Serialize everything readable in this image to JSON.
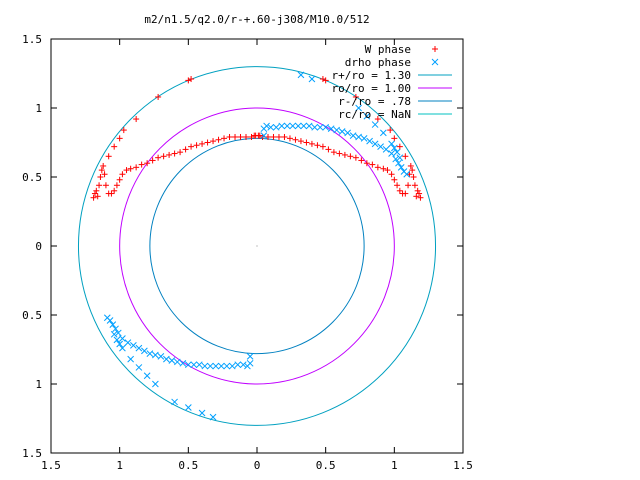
{
  "chart_data": {
    "type": "scatter",
    "title": "m2/n1.5/q2.0/r-+.60-j308/M10.0/512",
    "xlabel": "",
    "ylabel": "",
    "xlim": [
      -1.5,
      1.5
    ],
    "ylim": [
      -1.5,
      1.5
    ],
    "x_ticks": [
      -1.5,
      -1,
      -0.5,
      0,
      0.5,
      1,
      1.5
    ],
    "x_tick_labels": [
      "1.5",
      "1",
      "0.5",
      "0",
      "0.5",
      "1",
      "1.5"
    ],
    "y_ticks": [
      1.5,
      1,
      0.5,
      0,
      -0.5,
      -1,
      -1.5
    ],
    "y_tick_labels": [
      "1.5",
      "1",
      "0.5",
      "0",
      "0.5",
      "1",
      "1.5"
    ],
    "grid": false,
    "legend_position": "top-right",
    "series": [
      {
        "name": "W phase",
        "marker": "plus",
        "color": "#ff0000",
        "points": [
          [
            -1.19,
            0.35
          ],
          [
            -1.18,
            0.38
          ],
          [
            -1.17,
            0.4
          ],
          [
            -1.16,
            0.36
          ],
          [
            -1.15,
            0.44
          ],
          [
            -1.14,
            0.5
          ],
          [
            -1.13,
            0.55
          ],
          [
            -1.12,
            0.58
          ],
          [
            -1.11,
            0.52
          ],
          [
            -1.1,
            0.44
          ],
          [
            -1.08,
            0.38
          ],
          [
            -1.06,
            0.38
          ],
          [
            -1.04,
            0.4
          ],
          [
            -1.02,
            0.44
          ],
          [
            -1.0,
            0.48
          ],
          [
            -0.98,
            0.52
          ],
          [
            -0.95,
            0.55
          ],
          [
            -0.92,
            0.56
          ],
          [
            -0.88,
            0.57
          ],
          [
            -0.84,
            0.59
          ],
          [
            -0.8,
            0.6
          ],
          [
            -0.76,
            0.62
          ],
          [
            -0.72,
            0.64
          ],
          [
            -0.68,
            0.65
          ],
          [
            -0.64,
            0.66
          ],
          [
            -0.6,
            0.67
          ],
          [
            -0.56,
            0.68
          ],
          [
            -0.52,
            0.7
          ],
          [
            -0.48,
            0.72
          ],
          [
            -0.44,
            0.73
          ],
          [
            -0.4,
            0.74
          ],
          [
            -0.36,
            0.75
          ],
          [
            -0.32,
            0.76
          ],
          [
            -0.28,
            0.77
          ],
          [
            -0.24,
            0.78
          ],
          [
            -0.2,
            0.79
          ],
          [
            -0.16,
            0.79
          ],
          [
            -0.12,
            0.79
          ],
          [
            -0.08,
            0.79
          ],
          [
            -0.04,
            0.79
          ],
          [
            -0.01,
            0.8
          ],
          [
            0.02,
            0.8
          ],
          [
            -1.08,
            0.65
          ],
          [
            -1.04,
            0.72
          ],
          [
            -1.0,
            0.78
          ],
          [
            -0.97,
            0.84
          ],
          [
            -0.88,
            0.92
          ],
          [
            -0.72,
            1.08
          ],
          [
            -0.5,
            1.2
          ],
          [
            -0.48,
            1.21
          ],
          [
            1.19,
            0.35
          ],
          [
            1.18,
            0.38
          ],
          [
            1.17,
            0.4
          ],
          [
            1.16,
            0.36
          ],
          [
            1.15,
            0.44
          ],
          [
            1.14,
            0.5
          ],
          [
            1.13,
            0.55
          ],
          [
            1.12,
            0.58
          ],
          [
            1.11,
            0.52
          ],
          [
            1.1,
            0.44
          ],
          [
            1.08,
            0.38
          ],
          [
            1.06,
            0.38
          ],
          [
            1.04,
            0.4
          ],
          [
            1.02,
            0.44
          ],
          [
            1.0,
            0.48
          ],
          [
            0.98,
            0.52
          ],
          [
            0.95,
            0.55
          ],
          [
            0.92,
            0.56
          ],
          [
            0.88,
            0.57
          ],
          [
            0.84,
            0.59
          ],
          [
            0.8,
            0.6
          ],
          [
            0.76,
            0.62
          ],
          [
            0.72,
            0.64
          ],
          [
            0.68,
            0.65
          ],
          [
            0.64,
            0.66
          ],
          [
            0.6,
            0.67
          ],
          [
            0.56,
            0.68
          ],
          [
            0.52,
            0.7
          ],
          [
            0.48,
            0.72
          ],
          [
            0.44,
            0.73
          ],
          [
            0.4,
            0.74
          ],
          [
            0.36,
            0.75
          ],
          [
            0.32,
            0.76
          ],
          [
            0.28,
            0.77
          ],
          [
            0.24,
            0.78
          ],
          [
            0.2,
            0.79
          ],
          [
            0.16,
            0.79
          ],
          [
            0.12,
            0.79
          ],
          [
            0.08,
            0.79
          ],
          [
            0.04,
            0.79
          ],
          [
            0.01,
            0.8
          ],
          [
            -0.02,
            0.8
          ],
          [
            1.08,
            0.65
          ],
          [
            1.04,
            0.72
          ],
          [
            1.0,
            0.78
          ],
          [
            0.97,
            0.84
          ],
          [
            0.88,
            0.92
          ],
          [
            0.72,
            1.08
          ],
          [
            0.5,
            1.2
          ],
          [
            0.48,
            1.21
          ]
        ]
      },
      {
        "name": "drho phase",
        "marker": "cross",
        "color": "#00a0ff",
        "points": [
          [
            0.05,
            0.8
          ],
          [
            0.05,
            0.85
          ],
          [
            0.07,
            0.87
          ],
          [
            0.1,
            0.86
          ],
          [
            0.14,
            0.86
          ],
          [
            0.18,
            0.87
          ],
          [
            0.22,
            0.87
          ],
          [
            0.26,
            0.87
          ],
          [
            0.3,
            0.87
          ],
          [
            0.34,
            0.87
          ],
          [
            0.38,
            0.87
          ],
          [
            0.42,
            0.86
          ],
          [
            0.46,
            0.86
          ],
          [
            0.5,
            0.86
          ],
          [
            0.54,
            0.85
          ],
          [
            0.58,
            0.84
          ],
          [
            0.62,
            0.83
          ],
          [
            0.66,
            0.82
          ],
          [
            0.7,
            0.8
          ],
          [
            0.74,
            0.79
          ],
          [
            0.78,
            0.78
          ],
          [
            0.82,
            0.76
          ],
          [
            0.86,
            0.74
          ],
          [
            0.9,
            0.72
          ],
          [
            0.94,
            0.7
          ],
          [
            0.98,
            0.67
          ],
          [
            1.01,
            0.63
          ],
          [
            1.03,
            0.6
          ],
          [
            1.05,
            0.57
          ],
          [
            1.07,
            0.54
          ],
          [
            1.09,
            0.52
          ],
          [
            0.98,
            0.74
          ],
          [
            1.0,
            0.71
          ],
          [
            1.02,
            0.68
          ],
          [
            1.04,
            0.64
          ],
          [
            0.74,
            1.0
          ],
          [
            0.8,
            0.94
          ],
          [
            0.86,
            0.88
          ],
          [
            0.92,
            0.82
          ],
          [
            0.32,
            1.24
          ],
          [
            0.4,
            1.21
          ],
          [
            -0.05,
            -0.8
          ],
          [
            -0.05,
            -0.85
          ],
          [
            -0.07,
            -0.87
          ],
          [
            -0.1,
            -0.86
          ],
          [
            -0.14,
            -0.86
          ],
          [
            -0.18,
            -0.87
          ],
          [
            -0.22,
            -0.87
          ],
          [
            -0.26,
            -0.87
          ],
          [
            -0.3,
            -0.87
          ],
          [
            -0.34,
            -0.87
          ],
          [
            -0.38,
            -0.87
          ],
          [
            -0.42,
            -0.86
          ],
          [
            -0.46,
            -0.86
          ],
          [
            -0.5,
            -0.86
          ],
          [
            -0.54,
            -0.85
          ],
          [
            -0.58,
            -0.84
          ],
          [
            -0.62,
            -0.83
          ],
          [
            -0.66,
            -0.82
          ],
          [
            -0.7,
            -0.8
          ],
          [
            -0.74,
            -0.79
          ],
          [
            -0.78,
            -0.78
          ],
          [
            -0.82,
            -0.76
          ],
          [
            -0.86,
            -0.74
          ],
          [
            -0.9,
            -0.72
          ],
          [
            -0.94,
            -0.7
          ],
          [
            -0.98,
            -0.67
          ],
          [
            -1.01,
            -0.63
          ],
          [
            -1.03,
            -0.6
          ],
          [
            -1.05,
            -0.57
          ],
          [
            -1.07,
            -0.54
          ],
          [
            -1.09,
            -0.52
          ],
          [
            -0.98,
            -0.74
          ],
          [
            -1.0,
            -0.71
          ],
          [
            -1.02,
            -0.68
          ],
          [
            -1.04,
            -0.64
          ],
          [
            -0.74,
            -1.0
          ],
          [
            -0.8,
            -0.94
          ],
          [
            -0.86,
            -0.88
          ],
          [
            -0.92,
            -0.82
          ],
          [
            -0.32,
            -1.24
          ],
          [
            -0.4,
            -1.21
          ],
          [
            -0.6,
            -1.13
          ],
          [
            -0.5,
            -1.17
          ]
        ]
      }
    ],
    "circles": [
      {
        "name": "r+/ro = 1.30",
        "radius": 1.3,
        "color": "#00a0c0"
      },
      {
        "name": "ro/ro = 1.00",
        "radius": 1.0,
        "color": "#c000ff"
      },
      {
        "name": "r-/ro = .78",
        "radius": 0.78,
        "color": "#0080c0"
      },
      {
        "name": "rc/ro = NaN",
        "radius": null,
        "color": "#00c0c0"
      }
    ]
  }
}
